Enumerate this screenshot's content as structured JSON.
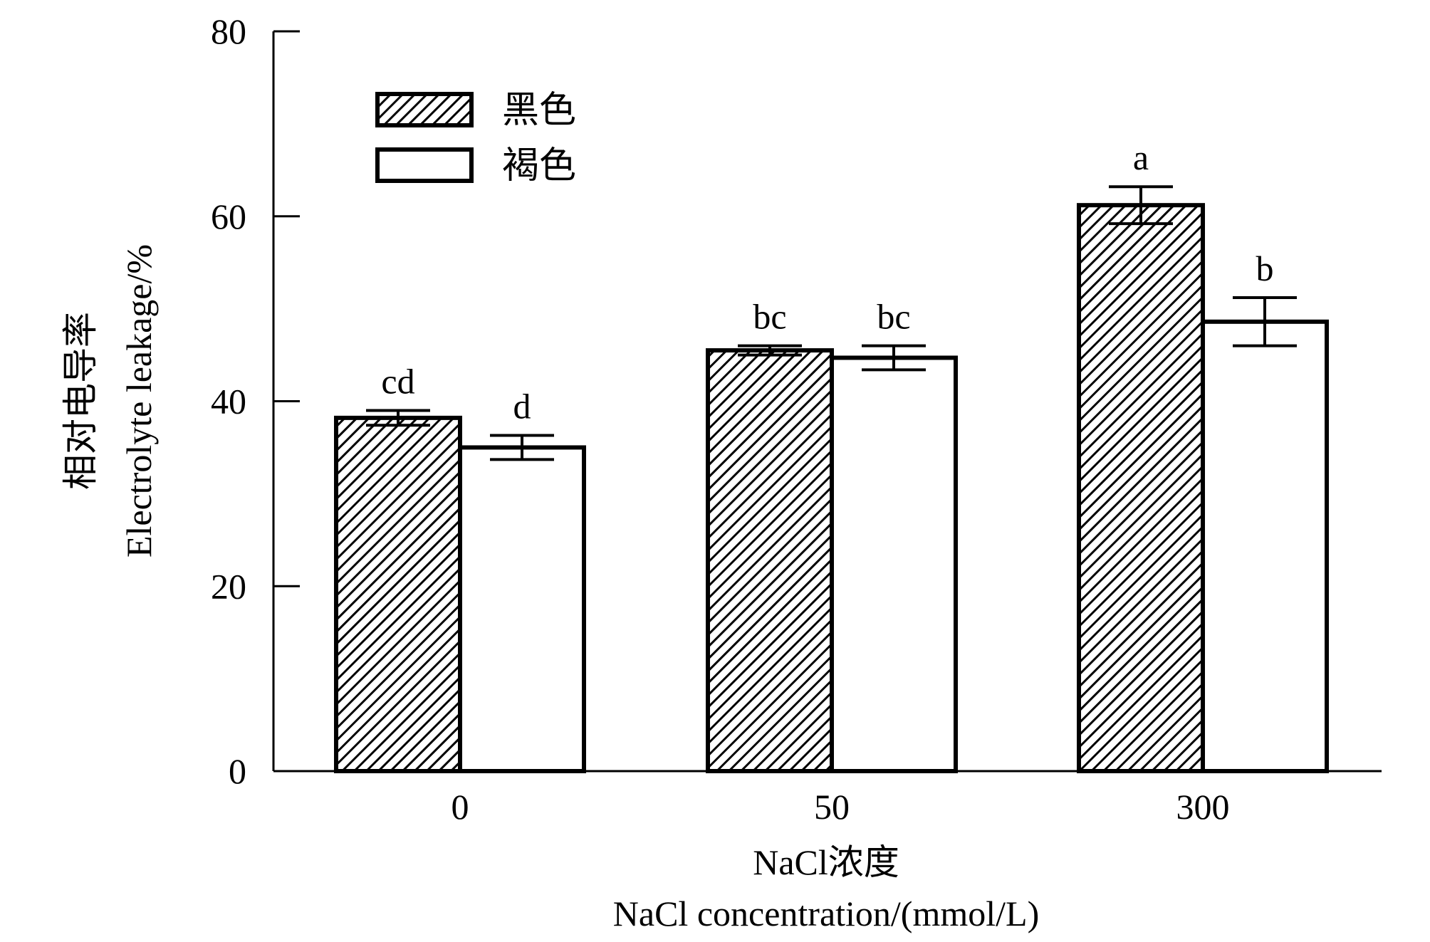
{
  "chart_data": {
    "type": "bar",
    "categories": [
      "0",
      "50",
      "300"
    ],
    "series": [
      {
        "name": "黑色",
        "pattern": "hatched",
        "values": [
          38.2,
          45.5,
          61.2
        ],
        "errors": [
          0.8,
          0.5,
          2.0
        ],
        "labels": [
          "cd",
          "bc",
          "a"
        ]
      },
      {
        "name": "褐色",
        "pattern": "white",
        "values": [
          35.0,
          44.7,
          48.6
        ],
        "errors": [
          1.3,
          1.3,
          2.6
        ],
        "labels": [
          "d",
          "bc",
          "b"
        ]
      }
    ],
    "xlabel": [
      "NaCl浓度",
      "NaCl concentration/(mmol/L)"
    ],
    "ylabel": [
      "相对电导率",
      "Electrolyte leakage/%"
    ],
    "ylim": [
      0,
      80
    ],
    "yticks": [
      0,
      20,
      40,
      60,
      80
    ],
    "grid": false,
    "legend_position": "top-left",
    "colors": {
      "bar_hatch": "#000000",
      "bar_fill": "#ffffff",
      "axis": "#000000"
    }
  }
}
